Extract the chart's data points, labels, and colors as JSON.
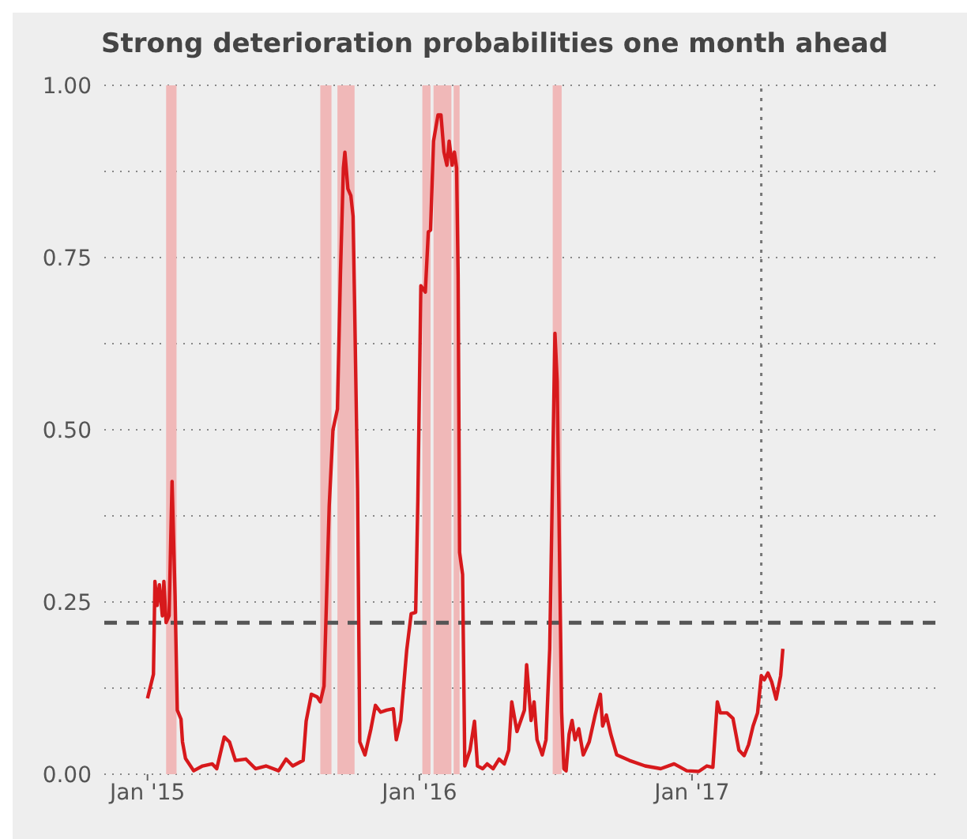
{
  "chart_data": {
    "type": "line",
    "title": "Strong deterioration probabilities one month ahead",
    "x": [
      "2015-01-01",
      "2015-01-09",
      "2015-01-11",
      "2015-01-14",
      "2015-01-17",
      "2015-01-21",
      "2015-01-23",
      "2015-01-26",
      "2015-01-30",
      "2015-02-03",
      "2015-02-07",
      "2015-02-10",
      "2015-02-15",
      "2015-02-17",
      "2015-02-21",
      "2015-03-04",
      "2015-03-16",
      "2015-03-29",
      "2015-04-04",
      "2015-04-14",
      "2015-04-21",
      "2015-04-29",
      "2015-05-13",
      "2015-05-26",
      "2015-06-09",
      "2015-06-26",
      "2015-07-06",
      "2015-07-15",
      "2015-07-29",
      "2015-08-02",
      "2015-08-09",
      "2015-08-17",
      "2015-08-21",
      "2015-08-26",
      "2015-09-02",
      "2015-09-07",
      "2015-09-13",
      "2015-09-17",
      "2015-09-21",
      "2015-09-23",
      "2015-09-27",
      "2015-10-01",
      "2015-10-04",
      "2015-10-06",
      "2015-10-10",
      "2015-10-13",
      "2015-10-20",
      "2015-10-28",
      "2015-11-03",
      "2015-11-10",
      "2015-11-18",
      "2015-11-27",
      "2015-12-01",
      "2015-12-07",
      "2015-12-15",
      "2015-12-21",
      "2015-12-27",
      "2015-12-30",
      "2016-01-03",
      "2016-01-09",
      "2016-01-13",
      "2016-01-16",
      "2016-01-20",
      "2016-01-26",
      "2016-01-30",
      "2016-02-03",
      "2016-02-07",
      "2016-02-10",
      "2016-02-14",
      "2016-02-17",
      "2016-02-20",
      "2016-02-22",
      "2016-02-24",
      "2016-02-28",
      "2016-03-02",
      "2016-03-09",
      "2016-03-15",
      "2016-03-19",
      "2016-03-26",
      "2016-04-01",
      "2016-04-09",
      "2016-04-17",
      "2016-04-24",
      "2016-04-30",
      "2016-05-04",
      "2016-05-11",
      "2016-05-21",
      "2016-05-24",
      "2016-05-30",
      "2016-06-03",
      "2016-06-07",
      "2016-06-14",
      "2016-06-19",
      "2016-06-24",
      "2016-07-01",
      "2016-07-04",
      "2016-07-10",
      "2016-07-13",
      "2016-07-16",
      "2016-07-20",
      "2016-07-24",
      "2016-07-28",
      "2016-08-02",
      "2016-08-08",
      "2016-08-16",
      "2016-08-24",
      "2016-08-31",
      "2016-09-03",
      "2016-09-08",
      "2016-09-14",
      "2016-09-22",
      "2016-10-09",
      "2016-10-30",
      "2016-11-20",
      "2016-12-08",
      "2016-12-25",
      "2017-01-10",
      "2017-01-21",
      "2017-01-29",
      "2017-02-04",
      "2017-02-08",
      "2017-02-17",
      "2017-02-25",
      "2017-03-05",
      "2017-03-12",
      "2017-03-18",
      "2017-03-24",
      "2017-03-30",
      "2017-04-04",
      "2017-04-08",
      "2017-04-13",
      "2017-04-18",
      "2017-04-24",
      "2017-04-30",
      "2017-05-03"
    ],
    "series": [
      {
        "color": "#d7191c",
        "values": [
          0.11,
          0.145,
          0.28,
          0.245,
          0.275,
          0.23,
          0.28,
          0.22,
          0.23,
          0.425,
          0.26,
          0.093,
          0.08,
          0.047,
          0.023,
          0.005,
          0.012,
          0.015,
          0.008,
          0.054,
          0.047,
          0.02,
          0.022,
          0.008,
          0.012,
          0.005,
          0.022,
          0.012,
          0.02,
          0.077,
          0.116,
          0.112,
          0.105,
          0.128,
          0.39,
          0.5,
          0.53,
          0.725,
          0.88,
          0.903,
          0.85,
          0.84,
          0.81,
          0.686,
          0.415,
          0.047,
          0.028,
          0.066,
          0.1,
          0.09,
          0.093,
          0.095,
          0.05,
          0.078,
          0.18,
          0.233,
          0.235,
          0.4,
          0.709,
          0.7,
          0.787,
          0.79,
          0.919,
          0.957,
          0.957,
          0.903,
          0.884,
          0.919,
          0.884,
          0.903,
          0.88,
          0.725,
          0.322,
          0.29,
          0.012,
          0.035,
          0.077,
          0.012,
          0.008,
          0.015,
          0.008,
          0.022,
          0.015,
          0.035,
          0.105,
          0.062,
          0.093,
          0.159,
          0.078,
          0.105,
          0.05,
          0.028,
          0.05,
          0.182,
          0.64,
          0.57,
          0.09,
          0.008,
          0.005,
          0.058,
          0.078,
          0.05,
          0.066,
          0.028,
          0.047,
          0.086,
          0.116,
          0.07,
          0.086,
          0.058,
          0.028,
          0.02,
          0.012,
          0.008,
          0.015,
          0.005,
          0.004,
          0.012,
          0.01,
          0.105,
          0.089,
          0.089,
          0.081,
          0.035,
          0.027,
          0.043,
          0.07,
          0.089,
          0.143,
          0.137,
          0.147,
          0.134,
          0.109,
          0.143,
          0.182
        ]
      }
    ],
    "xlim": [
      "2014-11-04",
      "2017-11-28"
    ],
    "xticks": [
      {
        "value": "2015-01-01",
        "label": "Jan '15"
      },
      {
        "value": "2016-01-01",
        "label": "Jan '16"
      },
      {
        "value": "2017-01-01",
        "label": "Jan '17"
      }
    ],
    "ylim": [
      0,
      1
    ],
    "yticks": [
      {
        "value": 0,
        "label": "0.00"
      },
      {
        "value": 0.125,
        "label": null
      },
      {
        "value": 0.25,
        "label": "0.25"
      },
      {
        "value": 0.375,
        "label": null
      },
      {
        "value": 0.5,
        "label": "0.50"
      },
      {
        "value": 0.625,
        "label": null
      },
      {
        "value": 0.75,
        "label": "0.75"
      },
      {
        "value": 0.875,
        "label": null
      },
      {
        "value": 1,
        "label": "1.00"
      }
    ],
    "grid": "y",
    "ref_lines": [
      {
        "axis": "y",
        "value": 0.22,
        "color": "#555555",
        "line_style": "dashed"
      },
      {
        "axis": "x",
        "value": "2017-04-04",
        "color": "#777777",
        "line_style": "dotted"
      }
    ],
    "bands": [
      {
        "axis": "x",
        "from": "2015-01-26",
        "to": "2015-02-09",
        "color": "#f0b8b8"
      },
      {
        "axis": "x",
        "from": "2015-08-21",
        "to": "2015-09-05",
        "color": "#f0b8b8"
      },
      {
        "axis": "x",
        "from": "2015-09-13",
        "to": "2015-10-06",
        "color": "#f0b8b8"
      },
      {
        "axis": "x",
        "from": "2016-01-05",
        "to": "2016-01-16",
        "color": "#f0b8b8"
      },
      {
        "axis": "x",
        "from": "2016-01-20",
        "to": "2016-02-13",
        "color": "#f0b8b8"
      },
      {
        "axis": "x",
        "from": "2016-02-16",
        "to": "2016-02-24",
        "color": "#f0b8b8"
      },
      {
        "axis": "x",
        "from": "2016-06-28",
        "to": "2016-07-10",
        "color": "#f0b8b8"
      }
    ]
  }
}
